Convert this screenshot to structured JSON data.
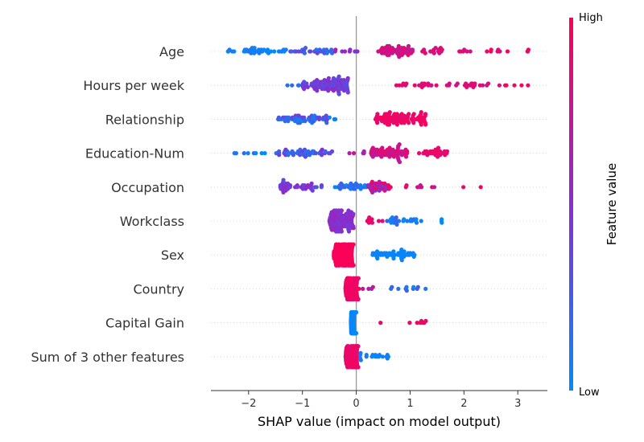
{
  "chart_data": {
    "type": "scatter",
    "subtype": "shap-beeswarm",
    "xlabel": "SHAP value (impact on model output)",
    "xlim": [
      -2.7,
      3.55
    ],
    "xticks": [
      -2,
      -1,
      0,
      1,
      2,
      3
    ],
    "xtick_labels": [
      "−2",
      "−1",
      "0",
      "1",
      "2",
      "3"
    ],
    "colorbar": {
      "label": "Feature value",
      "high_label": "High",
      "low_label": "Low",
      "low_color": "#008bfb",
      "mid_color": "#8a2ccf",
      "high_color": "#ff0052"
    },
    "zero_line_color": "#999999",
    "grid": false,
    "features": [
      {
        "name": "Age",
        "clusters": [
          {
            "min": -2.4,
            "max": -1.3,
            "n": 38,
            "fv": 0.05,
            "fvs": 0.08
          },
          {
            "min": -1.3,
            "max": -0.45,
            "n": 30,
            "fv": 0.25,
            "fvs": 0.15
          },
          {
            "min": -0.45,
            "max": 0.05,
            "n": 8,
            "fv": 0.55,
            "fvs": 0.2
          },
          {
            "min": 0.4,
            "max": 1.05,
            "n": 60,
            "fv": 0.82,
            "fvs": 0.12
          },
          {
            "min": 1.05,
            "max": 2.2,
            "n": 22,
            "fv": 0.85,
            "fvs": 0.1
          },
          {
            "min": 2.2,
            "max": 3.25,
            "n": 10,
            "fv": 0.9,
            "fvs": 0.08
          }
        ]
      },
      {
        "name": "Hours per week",
        "clusters": [
          {
            "min": -1.55,
            "max": -1.0,
            "n": 4,
            "fv": 0.15,
            "fvs": 0.1
          },
          {
            "min": -1.0,
            "max": -0.15,
            "n": 110,
            "fv": 0.42,
            "fvs": 0.12
          },
          {
            "min": 0.7,
            "max": 1.5,
            "n": 18,
            "fv": 0.85,
            "fvs": 0.1
          },
          {
            "min": 1.6,
            "max": 2.5,
            "n": 20,
            "fv": 0.85,
            "fvs": 0.1
          },
          {
            "min": 2.6,
            "max": 3.25,
            "n": 6,
            "fv": 0.88,
            "fvs": 0.08
          }
        ]
      },
      {
        "name": "Relationship",
        "clusters": [
          {
            "min": -1.45,
            "max": -0.45,
            "n": 60,
            "fv": 0.2,
            "fvs": 0.22
          },
          {
            "min": -0.45,
            "max": -0.35,
            "n": 2,
            "fv": 0.05,
            "fvs": 0.05
          },
          {
            "min": 0.35,
            "max": 1.3,
            "n": 100,
            "fv": 0.92,
            "fvs": 0.07
          }
        ]
      },
      {
        "name": "Education-Num",
        "clusters": [
          {
            "min": -2.3,
            "max": -1.5,
            "n": 8,
            "fv": 0.1,
            "fvs": 0.15
          },
          {
            "min": -1.5,
            "max": -0.45,
            "n": 50,
            "fv": 0.3,
            "fvs": 0.2
          },
          {
            "min": -0.45,
            "max": -0.45,
            "n": 1,
            "fv": 0.4,
            "fvs": 0.1
          },
          {
            "min": -0.15,
            "max": 0.15,
            "n": 5,
            "fv": 0.7,
            "fvs": 0.1
          },
          {
            "min": 0.25,
            "max": 0.95,
            "n": 70,
            "fv": 0.8,
            "fvs": 0.12
          },
          {
            "min": 1.15,
            "max": 1.7,
            "n": 30,
            "fv": 0.9,
            "fvs": 0.06
          }
        ]
      },
      {
        "name": "Occupation",
        "clusters": [
          {
            "min": -1.45,
            "max": -0.75,
            "n": 40,
            "fv": 0.45,
            "fvs": 0.12
          },
          {
            "min": -0.75,
            "max": -0.55,
            "n": 3,
            "fv": 0.35,
            "fvs": 0.1
          },
          {
            "min": -0.4,
            "max": 0.2,
            "n": 30,
            "fv": 0.12,
            "fvs": 0.12
          },
          {
            "min": 0.2,
            "max": 0.6,
            "n": 40,
            "fv": 0.65,
            "fvs": 0.3
          },
          {
            "min": 0.6,
            "max": 1.55,
            "n": 10,
            "fv": 0.8,
            "fvs": 0.15
          },
          {
            "min": 1.8,
            "max": 2.65,
            "n": 2,
            "fv": 0.9,
            "fvs": 0.05
          }
        ]
      },
      {
        "name": "Workclass",
        "clusters": [
          {
            "min": -0.5,
            "max": -0.05,
            "n": 120,
            "fv": 0.5,
            "fvs": 0.1
          },
          {
            "min": 0.2,
            "max": 0.55,
            "n": 10,
            "fv": 0.88,
            "fvs": 0.08
          },
          {
            "min": 0.5,
            "max": 1.25,
            "n": 25,
            "fv": 0.1,
            "fvs": 0.12
          },
          {
            "min": 1.58,
            "max": 1.6,
            "n": 3,
            "fv": 0.02,
            "fvs": 0.03
          }
        ]
      },
      {
        "name": "Sex",
        "clusters": [
          {
            "min": -0.42,
            "max": -0.05,
            "n": 150,
            "fv": 0.97,
            "fvs": 0.03
          },
          {
            "min": 0.3,
            "max": 1.1,
            "n": 50,
            "fv": 0.03,
            "fvs": 0.03
          }
        ]
      },
      {
        "name": "Country",
        "clusters": [
          {
            "min": -0.2,
            "max": 0.05,
            "n": 120,
            "fv": 0.93,
            "fvs": 0.05
          },
          {
            "min": 0.05,
            "max": 0.35,
            "n": 4,
            "fv": 0.75,
            "fvs": 0.2
          },
          {
            "min": 0.6,
            "max": 0.8,
            "n": 3,
            "fv": 0.1,
            "fvs": 0.1
          },
          {
            "min": 0.9,
            "max": 1.35,
            "n": 8,
            "fv": 0.2,
            "fvs": 0.2
          }
        ]
      },
      {
        "name": "Capital Gain",
        "clusters": [
          {
            "min": -0.1,
            "max": 0.0,
            "n": 140,
            "fv": 0.02,
            "fvs": 0.02
          },
          {
            "min": 0.45,
            "max": 0.45,
            "n": 1,
            "fv": 0.95,
            "fvs": 0.02
          },
          {
            "min": 0.9,
            "max": 1.35,
            "n": 7,
            "fv": 0.93,
            "fvs": 0.03
          }
        ]
      },
      {
        "name": "Sum of 3 other features",
        "clusters": [
          {
            "min": -0.2,
            "max": 0.05,
            "n": 130,
            "fv": 0.92,
            "fvs": 0.06
          },
          {
            "min": 0.05,
            "max": 0.6,
            "n": 18,
            "fv": 0.06,
            "fvs": 0.05
          }
        ]
      }
    ]
  }
}
